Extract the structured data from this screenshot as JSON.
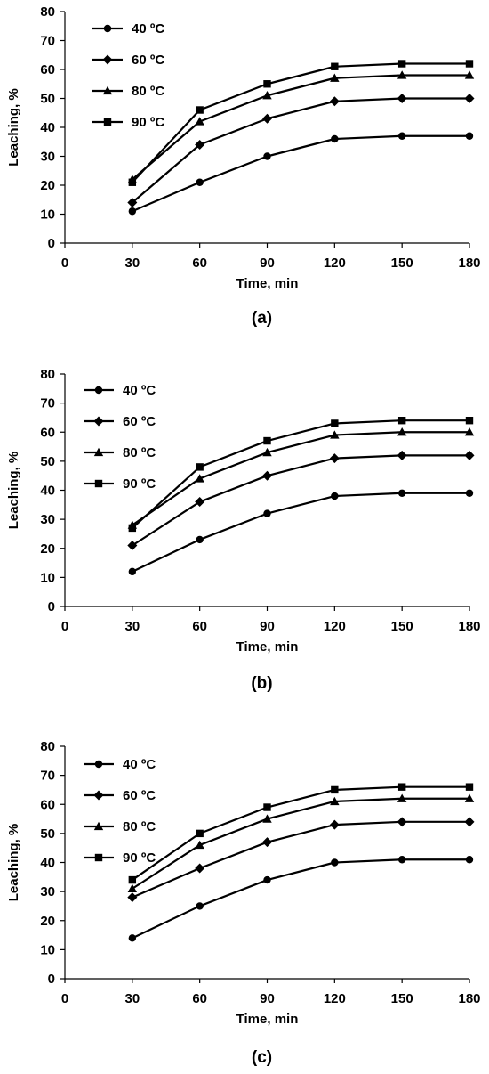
{
  "chart_data": [
    {
      "type": "line",
      "panel_label": "(a)",
      "xlabel": "Time, min",
      "ylabel": "Leaching, %",
      "xlim": [
        0,
        180
      ],
      "ylim": [
        0,
        80
      ],
      "xticks": [
        0,
        30,
        60,
        90,
        120,
        150,
        180
      ],
      "yticks": [
        0,
        10,
        20,
        30,
        40,
        50,
        60,
        70,
        80
      ],
      "grid": false,
      "legend_position": "top-left",
      "x": [
        30,
        60,
        90,
        120,
        150,
        180
      ],
      "series": [
        {
          "name": "40 ºC",
          "marker": "circle",
          "values": [
            11,
            21,
            30,
            36,
            37,
            37
          ]
        },
        {
          "name": "60 ºC",
          "marker": "diamond",
          "values": [
            14,
            34,
            43,
            49,
            50,
            50
          ]
        },
        {
          "name": "80 ºC",
          "marker": "triangle",
          "values": [
            22,
            42,
            51,
            57,
            58,
            58
          ]
        },
        {
          "name": "90 ºC",
          "marker": "square",
          "values": [
            21,
            46,
            55,
            61,
            62,
            62
          ]
        }
      ]
    },
    {
      "type": "line",
      "panel_label": "(b)",
      "xlabel": "Time, min",
      "ylabel": "Leaching, %",
      "xlim": [
        0,
        180
      ],
      "ylim": [
        0,
        80
      ],
      "xticks": [
        0,
        30,
        60,
        90,
        120,
        150,
        180
      ],
      "yticks": [
        0,
        10,
        20,
        30,
        40,
        50,
        60,
        70,
        80
      ],
      "grid": false,
      "legend_position": "top-left",
      "x": [
        30,
        60,
        90,
        120,
        150,
        180
      ],
      "series": [
        {
          "name": "40 ºC",
          "marker": "circle",
          "values": [
            12,
            23,
            32,
            38,
            39,
            39
          ]
        },
        {
          "name": "60 ºC",
          "marker": "diamond",
          "values": [
            21,
            36,
            45,
            51,
            52,
            52
          ]
        },
        {
          "name": "80 ºC",
          "marker": "triangle",
          "values": [
            28,
            44,
            53,
            59,
            60,
            60
          ]
        },
        {
          "name": "90 ºC",
          "marker": "square",
          "values": [
            27,
            48,
            57,
            63,
            64,
            64
          ]
        }
      ]
    },
    {
      "type": "line",
      "panel_label": "(c)",
      "xlabel": "Time, min",
      "ylabel": "Leaching, %",
      "xlim": [
        0,
        180
      ],
      "ylim": [
        0,
        80
      ],
      "xticks": [
        0,
        30,
        60,
        90,
        120,
        150,
        180
      ],
      "yticks": [
        0,
        10,
        20,
        30,
        40,
        50,
        60,
        70,
        80
      ],
      "grid": false,
      "legend_position": "top-left",
      "x": [
        30,
        60,
        90,
        120,
        150,
        180
      ],
      "series": [
        {
          "name": "40 ºC",
          "marker": "circle",
          "values": [
            14,
            25,
            34,
            40,
            41,
            41
          ]
        },
        {
          "name": "60 ºC",
          "marker": "diamond",
          "values": [
            28,
            38,
            47,
            53,
            54,
            54
          ]
        },
        {
          "name": "80 ºC",
          "marker": "triangle",
          "values": [
            31,
            46,
            55,
            61,
            62,
            62
          ]
        },
        {
          "name": "90 ºC",
          "marker": "square",
          "values": [
            34,
            50,
            59,
            65,
            66,
            66
          ]
        }
      ]
    }
  ],
  "style": {
    "line_color": "#000000",
    "axis_color": "#000000"
  }
}
